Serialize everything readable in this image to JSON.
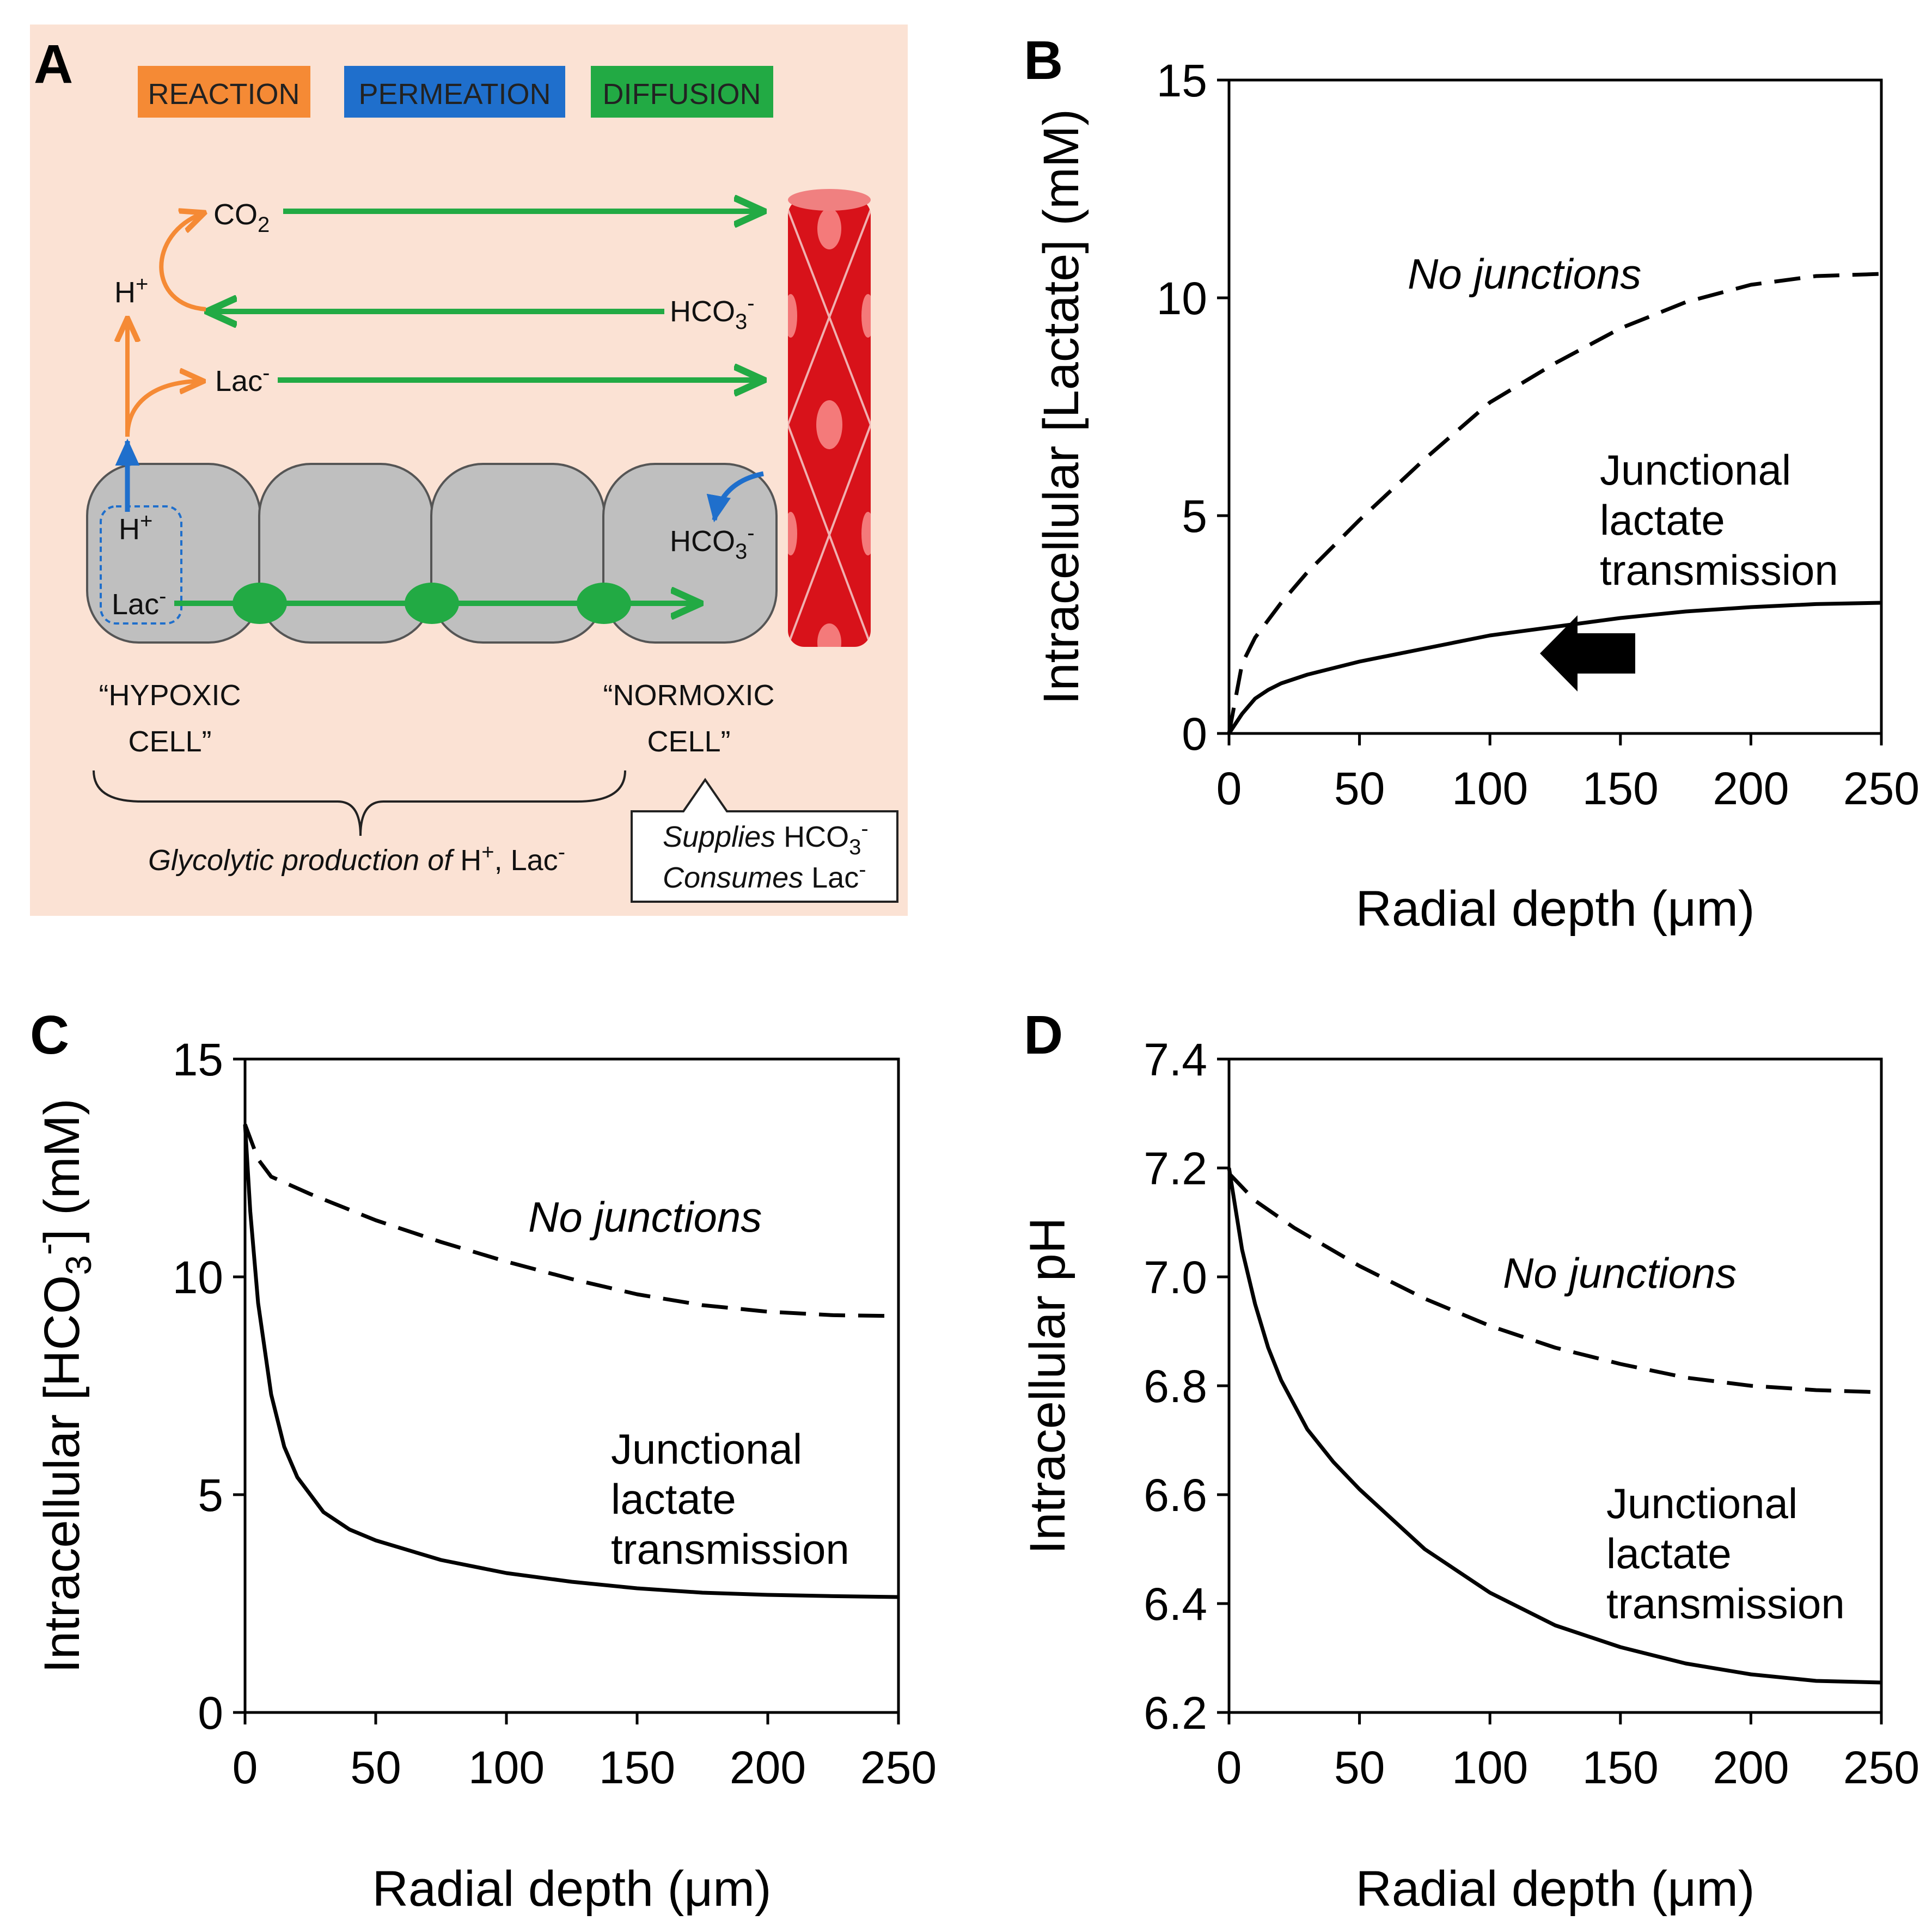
{
  "panels": {
    "a": {
      "letter": "A",
      "legend": {
        "reaction": "REACTION",
        "permeation": "PERMEATION",
        "diffusion": "DIFFUSION"
      },
      "colors": {
        "background": "#fbe2d4",
        "reaction": "#f58a35",
        "permeation": "#1f6fcc",
        "diffusion": "#22aa44",
        "cell": "#bfbfbf",
        "vessel": "#d8121a"
      },
      "species": {
        "co2": "CO",
        "co2_sub": "2",
        "h_plus": "H",
        "h_plus_sup": "+",
        "hco3": "HCO",
        "hco3_sub": "3",
        "hco3_sup": "-",
        "lac": "Lac",
        "lac_sup": "-"
      },
      "hypoxic_cell": {
        "line1": "“HYPOXIC",
        "line2": "CELL”"
      },
      "normoxic_cell": {
        "line1": "“NORMOXIC",
        "line2": "CELL”"
      },
      "brace_caption": {
        "italic": "Glycolytic production of",
        "rest": "H",
        "sup": "+",
        "rest2": ", Lac",
        "sup2": "-"
      },
      "callout": {
        "line1_italic": "Supplies",
        "line1_rest": "HCO",
        "line1_sub": "3",
        "line1_sup": "-",
        "line2_italic": "Consumes",
        "line2_rest": "Lac",
        "line2_sup": "-"
      }
    },
    "b": {
      "letter": "B",
      "ylabel": "Intracellular [Lactate] (mM)",
      "xlabel": "Radial depth (μm)",
      "label_dashed": "No junctions",
      "label_solid": [
        "Junctional",
        "lactate",
        "transmission"
      ]
    },
    "c": {
      "letter": "C",
      "ylabel_pre": "Intracellular [HCO",
      "ylabel_sub": "3",
      "ylabel_sup": "-",
      "ylabel_post": "] (mM)",
      "xlabel": "Radial depth (μm)",
      "label_dashed": "No junctions",
      "label_solid": [
        "Junctional",
        "lactate",
        "transmission"
      ]
    },
    "d": {
      "letter": "D",
      "ylabel": "Intracellular pH",
      "xlabel": "Radial depth (μm)",
      "label_dashed": "No junctions",
      "label_solid": [
        "Junctional",
        "lactate",
        "transmission"
      ]
    }
  },
  "chart_data": [
    {
      "id": "B",
      "type": "line",
      "xlabel": "Radial depth (μm)",
      "ylabel": "Intracellular [Lactate] (mM)",
      "xlim": [
        0,
        250
      ],
      "ylim": [
        0,
        15
      ],
      "xticks": [
        0,
        50,
        100,
        150,
        200,
        250
      ],
      "yticks": [
        0,
        5,
        10,
        15
      ],
      "ytick_labels": [
        "0",
        "5",
        "10",
        "15"
      ],
      "series": [
        {
          "name": "No junctions",
          "style": "dashed",
          "x": [
            0,
            5,
            10,
            20,
            30,
            40,
            50,
            75,
            100,
            125,
            150,
            175,
            200,
            225,
            250
          ],
          "y": [
            0,
            1.6,
            2.2,
            3.0,
            3.7,
            4.3,
            4.9,
            6.3,
            7.6,
            8.5,
            9.3,
            9.9,
            10.3,
            10.5,
            10.55
          ]
        },
        {
          "name": "Junctional lactate transmission",
          "style": "solid",
          "x": [
            0,
            5,
            10,
            15,
            20,
            30,
            50,
            75,
            100,
            125,
            150,
            175,
            200,
            225,
            250
          ],
          "y": [
            0,
            0.45,
            0.8,
            1.0,
            1.15,
            1.35,
            1.65,
            1.95,
            2.25,
            2.45,
            2.65,
            2.8,
            2.9,
            2.97,
            3.0
          ]
        }
      ]
    },
    {
      "id": "C",
      "type": "line",
      "xlabel": "Radial depth (μm)",
      "ylabel": "Intracellular [HCO3-] (mM)",
      "xlim": [
        0,
        250
      ],
      "ylim": [
        0,
        15
      ],
      "xticks": [
        0,
        50,
        100,
        150,
        200,
        250
      ],
      "yticks": [
        0,
        5,
        10,
        15
      ],
      "ytick_labels": [
        "0",
        "5",
        "10",
        "15"
      ],
      "series": [
        {
          "name": "No junctions",
          "style": "dashed",
          "x": [
            0,
            5,
            10,
            25,
            50,
            75,
            100,
            125,
            150,
            175,
            200,
            225,
            250
          ],
          "y": [
            13.5,
            12.7,
            12.3,
            11.9,
            11.3,
            10.8,
            10.35,
            9.95,
            9.6,
            9.35,
            9.2,
            9.12,
            9.1
          ]
        },
        {
          "name": "Junctional lactate transmission",
          "style": "solid",
          "x": [
            0,
            2,
            5,
            10,
            15,
            20,
            30,
            40,
            50,
            75,
            100,
            125,
            150,
            175,
            200,
            225,
            250
          ],
          "y": [
            13.5,
            11.5,
            9.4,
            7.3,
            6.1,
            5.4,
            4.6,
            4.2,
            3.95,
            3.5,
            3.2,
            3.0,
            2.85,
            2.75,
            2.7,
            2.67,
            2.65
          ]
        }
      ]
    },
    {
      "id": "D",
      "type": "line",
      "xlabel": "Radial depth (μm)",
      "ylabel": "Intracellular pH",
      "xlim": [
        0,
        250
      ],
      "ylim": [
        6.2,
        7.4
      ],
      "xticks": [
        0,
        50,
        100,
        150,
        200,
        250
      ],
      "yticks": [
        6.2,
        6.4,
        6.6,
        6.8,
        7.0,
        7.2,
        7.4
      ],
      "ytick_labels": [
        "6.2",
        "6.4",
        "6.6",
        "6.8",
        "7.0",
        "7.2",
        "7.4"
      ],
      "series": [
        {
          "name": "No junctions",
          "style": "dashed",
          "x": [
            0,
            10,
            25,
            50,
            75,
            100,
            125,
            150,
            175,
            200,
            225,
            250
          ],
          "y": [
            7.19,
            7.14,
            7.09,
            7.02,
            6.96,
            6.91,
            6.87,
            6.84,
            6.815,
            6.8,
            6.792,
            6.788
          ]
        },
        {
          "name": "Junctional lactate transmission",
          "style": "solid",
          "x": [
            0,
            5,
            10,
            15,
            20,
            30,
            40,
            50,
            75,
            100,
            125,
            150,
            175,
            200,
            225,
            250
          ],
          "y": [
            7.2,
            7.05,
            6.95,
            6.87,
            6.81,
            6.72,
            6.66,
            6.61,
            6.5,
            6.42,
            6.36,
            6.32,
            6.29,
            6.27,
            6.258,
            6.255
          ]
        }
      ]
    }
  ]
}
